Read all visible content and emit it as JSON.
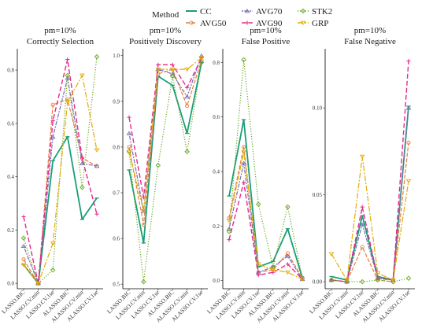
{
  "legend": {
    "title": "Method",
    "items": [
      {
        "name": "CC",
        "color": "#1a9e77"
      },
      {
        "name": "AVG50",
        "color": "#e87d3e"
      },
      {
        "name": "AVG70",
        "color": "#7570b3"
      },
      {
        "name": "AVG90",
        "color": "#e7298a"
      },
      {
        "name": "STK2",
        "color": "#66a61e"
      },
      {
        "name": "GRP",
        "color": "#e6ab02"
      }
    ]
  },
  "chart_data": [
    {
      "type": "line",
      "title": "pm=10%",
      "subtitle": "Correctly Selection",
      "categories": [
        "LASSO.BIC",
        "LASSO.CV.min",
        "LASSO.CV.1se",
        "ALASSO.BIC",
        "ALASSO.CV.min",
        "ALASSO.CV.1se"
      ],
      "ylim": [
        -0.02,
        0.88
      ],
      "yticks": [
        0.0,
        0.2,
        0.4,
        0.6,
        0.8
      ],
      "ytick_labels": [
        "0.0",
        "0.2",
        "0.4",
        "0.6",
        "0.8"
      ],
      "series": [
        {
          "name": "CC",
          "values": [
            0.07,
            0.0,
            0.46,
            0.55,
            0.24,
            0.32
          ]
        },
        {
          "name": "AVG50",
          "values": [
            0.09,
            0.0,
            0.67,
            0.69,
            0.47,
            0.44
          ]
        },
        {
          "name": "AVG70",
          "values": [
            0.14,
            0.0,
            0.55,
            0.77,
            0.45,
            0.44
          ]
        },
        {
          "name": "AVG90",
          "values": [
            0.25,
            0.0,
            0.61,
            0.84,
            0.47,
            0.26
          ]
        },
        {
          "name": "STK2",
          "values": [
            0.17,
            0.0,
            0.05,
            0.78,
            0.36,
            0.85
          ]
        },
        {
          "name": "GRP",
          "values": [
            0.07,
            0.0,
            0.15,
            0.68,
            0.78,
            0.5
          ]
        }
      ]
    },
    {
      "type": "line",
      "title": "pm=10%",
      "subtitle": "Positively Discovery",
      "categories": [
        "LASSO.BIC",
        "LASSO.CV.min",
        "LASSO.CV.1se",
        "ALASSO.BIC",
        "ALASSO.CV.min",
        "ALASSO.CV.1se"
      ],
      "ylim": [
        0.49,
        1.015
      ],
      "yticks": [
        0.5,
        0.6,
        0.7,
        0.8,
        0.9,
        1.0
      ],
      "ytick_labels": [
        "0.5",
        "0.6",
        "0.7",
        "0.8",
        "0.9",
        "1.0"
      ],
      "series": [
        {
          "name": "CC",
          "values": [
            0.75,
            0.59,
            0.955,
            0.935,
            0.83,
            0.985
          ]
        },
        {
          "name": "AVG50",
          "values": [
            0.8,
            0.63,
            0.96,
            0.97,
            0.89,
            0.99
          ]
        },
        {
          "name": "AVG70",
          "values": [
            0.83,
            0.66,
            0.97,
            0.96,
            0.91,
            1.0
          ]
        },
        {
          "name": "AVG90",
          "values": [
            0.865,
            0.69,
            0.98,
            0.98,
            0.93,
            0.995
          ]
        },
        {
          "name": "STK2",
          "values": [
            0.79,
            0.505,
            0.76,
            0.955,
            0.79,
            0.985
          ]
        },
        {
          "name": "GRP",
          "values": [
            0.79,
            0.66,
            0.97,
            0.97,
            0.97,
            0.995
          ]
        }
      ]
    },
    {
      "type": "line",
      "title": "pm=10%",
      "subtitle": "False Positive",
      "categories": [
        "LASSO.BIC",
        "LASSO.CV.min",
        "LASSO.CV.1se",
        "ALASSO.BIC",
        "ALASSO.CV.min",
        "ALASSO.CV.1se"
      ],
      "ylim": [
        -0.03,
        0.85
      ],
      "yticks": [
        0.0,
        0.2,
        0.4,
        0.6,
        0.8
      ],
      "ytick_labels": [
        "0.0",
        "0.2",
        "0.4",
        "0.6",
        "0.8"
      ],
      "series": [
        {
          "name": "CC",
          "values": [
            0.31,
            0.59,
            0.05,
            0.07,
            0.19,
            0.01
          ]
        },
        {
          "name": "AVG50",
          "values": [
            0.23,
            0.49,
            0.03,
            0.04,
            0.1,
            0.01
          ]
        },
        {
          "name": "AVG70",
          "values": [
            0.19,
            0.43,
            0.03,
            0.05,
            0.09,
            0.005
          ]
        },
        {
          "name": "AVG90",
          "values": [
            0.15,
            0.36,
            0.02,
            0.03,
            0.06,
            0.005
          ]
        },
        {
          "name": "STK2",
          "values": [
            0.18,
            0.81,
            0.28,
            0.05,
            0.27,
            0.01
          ]
        },
        {
          "name": "GRP",
          "values": [
            0.22,
            0.47,
            0.06,
            0.04,
            0.03,
            0.005
          ]
        }
      ]
    },
    {
      "type": "line",
      "title": "pm=10%",
      "subtitle": "False Negative",
      "categories": [
        "LASSO.BIC",
        "LASSO.CV.min",
        "LASSO.CV.1se",
        "ALASSO.BIC",
        "ALASSO.CV.min",
        "ALASSO.CV.1se"
      ],
      "ylim": [
        -0.004,
        0.134
      ],
      "yticks": [
        0.0,
        0.05,
        0.1
      ],
      "ytick_labels": [
        "0.00",
        "0.05",
        "0.10"
      ],
      "series": [
        {
          "name": "CC",
          "values": [
            0.003,
            0.001,
            0.038,
            0.003,
            0.001,
            0.101
          ]
        },
        {
          "name": "AVG50",
          "values": [
            0.001,
            0.0,
            0.02,
            0.001,
            0.0,
            0.08
          ]
        },
        {
          "name": "AVG70",
          "values": [
            0.001,
            0.0,
            0.033,
            0.002,
            0.001,
            0.1
          ]
        },
        {
          "name": "AVG90",
          "values": [
            0.001,
            0.0,
            0.043,
            0.002,
            0.001,
            0.127
          ]
        },
        {
          "name": "STK2",
          "values": [
            0.001,
            0.0,
            0.0,
            0.001,
            0.0,
            0.002
          ]
        },
        {
          "name": "GRP",
          "values": [
            0.016,
            0.001,
            0.072,
            0.005,
            0.001,
            0.058
          ]
        }
      ]
    }
  ]
}
